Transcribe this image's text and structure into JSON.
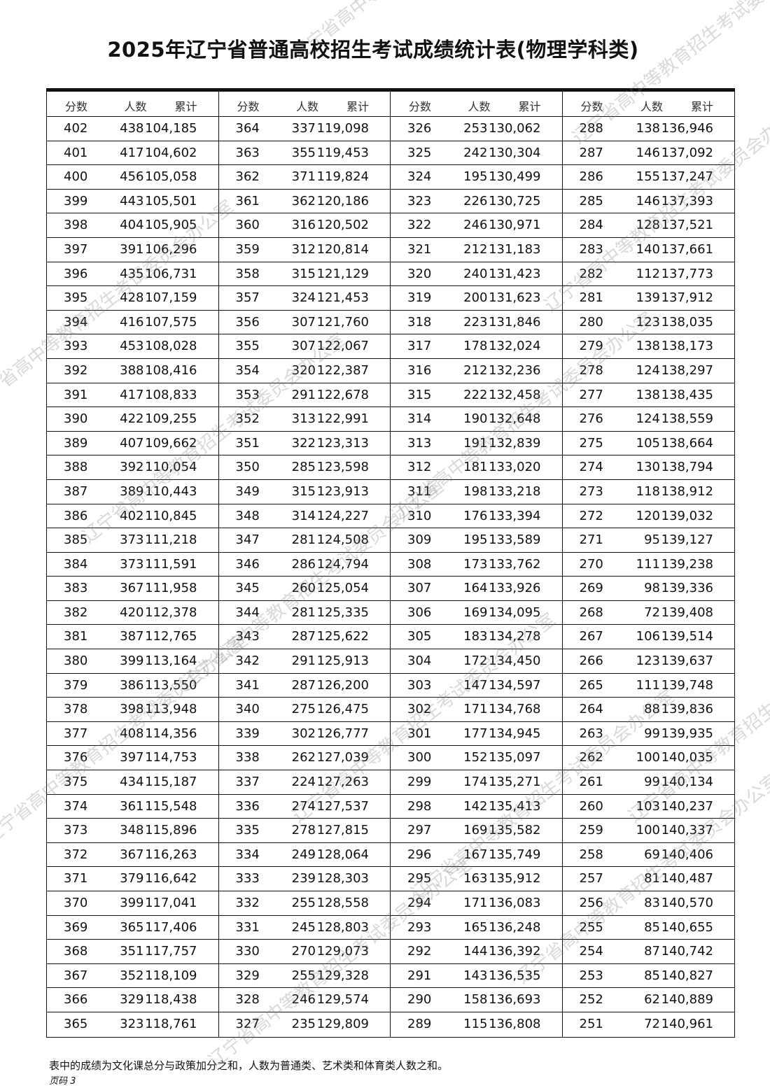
{
  "title": "2025年辽宁省普通高校招生考试成绩统计表(物理学科类)",
  "headers": {
    "score": "分数",
    "count": "人数",
    "cumulative": "累计"
  },
  "columns": [
    [
      [
        "402",
        "438",
        "104,185"
      ],
      [
        "401",
        "417",
        "104,602"
      ],
      [
        "400",
        "456",
        "105,058"
      ],
      [
        "399",
        "443",
        "105,501"
      ],
      [
        "398",
        "404",
        "105,905"
      ],
      [
        "397",
        "391",
        "106,296"
      ],
      [
        "396",
        "435",
        "106,731"
      ],
      [
        "395",
        "428",
        "107,159"
      ],
      [
        "394",
        "416",
        "107,575"
      ],
      [
        "393",
        "453",
        "108,028"
      ],
      [
        "392",
        "388",
        "108,416"
      ],
      [
        "391",
        "417",
        "108,833"
      ],
      [
        "390",
        "422",
        "109,255"
      ],
      [
        "389",
        "407",
        "109,662"
      ],
      [
        "388",
        "392",
        "110,054"
      ],
      [
        "387",
        "389",
        "110,443"
      ],
      [
        "386",
        "402",
        "110,845"
      ],
      [
        "385",
        "373",
        "111,218"
      ],
      [
        "384",
        "373",
        "111,591"
      ],
      [
        "383",
        "367",
        "111,958"
      ],
      [
        "382",
        "420",
        "112,378"
      ],
      [
        "381",
        "387",
        "112,765"
      ],
      [
        "380",
        "399",
        "113,164"
      ],
      [
        "379",
        "386",
        "113,550"
      ],
      [
        "378",
        "398",
        "113,948"
      ],
      [
        "377",
        "408",
        "114,356"
      ],
      [
        "376",
        "397",
        "114,753"
      ],
      [
        "375",
        "434",
        "115,187"
      ],
      [
        "374",
        "361",
        "115,548"
      ],
      [
        "373",
        "348",
        "115,896"
      ],
      [
        "372",
        "367",
        "116,263"
      ],
      [
        "371",
        "379",
        "116,642"
      ],
      [
        "370",
        "399",
        "117,041"
      ],
      [
        "369",
        "365",
        "117,406"
      ],
      [
        "368",
        "351",
        "117,757"
      ],
      [
        "367",
        "352",
        "118,109"
      ],
      [
        "366",
        "329",
        "118,438"
      ],
      [
        "365",
        "323",
        "118,761"
      ]
    ],
    [
      [
        "364",
        "337",
        "119,098"
      ],
      [
        "363",
        "355",
        "119,453"
      ],
      [
        "362",
        "371",
        "119,824"
      ],
      [
        "361",
        "362",
        "120,186"
      ],
      [
        "360",
        "316",
        "120,502"
      ],
      [
        "359",
        "312",
        "120,814"
      ],
      [
        "358",
        "315",
        "121,129"
      ],
      [
        "357",
        "324",
        "121,453"
      ],
      [
        "356",
        "307",
        "121,760"
      ],
      [
        "355",
        "307",
        "122,067"
      ],
      [
        "354",
        "320",
        "122,387"
      ],
      [
        "353",
        "291",
        "122,678"
      ],
      [
        "352",
        "313",
        "122,991"
      ],
      [
        "351",
        "322",
        "123,313"
      ],
      [
        "350",
        "285",
        "123,598"
      ],
      [
        "349",
        "315",
        "123,913"
      ],
      [
        "348",
        "314",
        "124,227"
      ],
      [
        "347",
        "281",
        "124,508"
      ],
      [
        "346",
        "286",
        "124,794"
      ],
      [
        "345",
        "260",
        "125,054"
      ],
      [
        "344",
        "281",
        "125,335"
      ],
      [
        "343",
        "287",
        "125,622"
      ],
      [
        "342",
        "291",
        "125,913"
      ],
      [
        "341",
        "287",
        "126,200"
      ],
      [
        "340",
        "275",
        "126,475"
      ],
      [
        "339",
        "302",
        "126,777"
      ],
      [
        "338",
        "262",
        "127,039"
      ],
      [
        "337",
        "224",
        "127,263"
      ],
      [
        "336",
        "274",
        "127,537"
      ],
      [
        "335",
        "278",
        "127,815"
      ],
      [
        "334",
        "249",
        "128,064"
      ],
      [
        "333",
        "239",
        "128,303"
      ],
      [
        "332",
        "255",
        "128,558"
      ],
      [
        "331",
        "245",
        "128,803"
      ],
      [
        "330",
        "270",
        "129,073"
      ],
      [
        "329",
        "255",
        "129,328"
      ],
      [
        "328",
        "246",
        "129,574"
      ],
      [
        "327",
        "235",
        "129,809"
      ]
    ],
    [
      [
        "326",
        "253",
        "130,062"
      ],
      [
        "325",
        "242",
        "130,304"
      ],
      [
        "324",
        "195",
        "130,499"
      ],
      [
        "323",
        "226",
        "130,725"
      ],
      [
        "322",
        "246",
        "130,971"
      ],
      [
        "321",
        "212",
        "131,183"
      ],
      [
        "320",
        "240",
        "131,423"
      ],
      [
        "319",
        "200",
        "131,623"
      ],
      [
        "318",
        "223",
        "131,846"
      ],
      [
        "317",
        "178",
        "132,024"
      ],
      [
        "316",
        "212",
        "132,236"
      ],
      [
        "315",
        "222",
        "132,458"
      ],
      [
        "314",
        "190",
        "132,648"
      ],
      [
        "313",
        "191",
        "132,839"
      ],
      [
        "312",
        "181",
        "133,020"
      ],
      [
        "311",
        "198",
        "133,218"
      ],
      [
        "310",
        "176",
        "133,394"
      ],
      [
        "309",
        "195",
        "133,589"
      ],
      [
        "308",
        "173",
        "133,762"
      ],
      [
        "307",
        "164",
        "133,926"
      ],
      [
        "306",
        "169",
        "134,095"
      ],
      [
        "305",
        "183",
        "134,278"
      ],
      [
        "304",
        "172",
        "134,450"
      ],
      [
        "303",
        "147",
        "134,597"
      ],
      [
        "302",
        "171",
        "134,768"
      ],
      [
        "301",
        "177",
        "134,945"
      ],
      [
        "300",
        "152",
        "135,097"
      ],
      [
        "299",
        "174",
        "135,271"
      ],
      [
        "298",
        "142",
        "135,413"
      ],
      [
        "297",
        "169",
        "135,582"
      ],
      [
        "296",
        "167",
        "135,749"
      ],
      [
        "295",
        "163",
        "135,912"
      ],
      [
        "294",
        "171",
        "136,083"
      ],
      [
        "293",
        "165",
        "136,248"
      ],
      [
        "292",
        "144",
        "136,392"
      ],
      [
        "291",
        "143",
        "136,535"
      ],
      [
        "290",
        "158",
        "136,693"
      ],
      [
        "289",
        "115",
        "136,808"
      ]
    ],
    [
      [
        "288",
        "138",
        "136,946"
      ],
      [
        "287",
        "146",
        "137,092"
      ],
      [
        "286",
        "155",
        "137,247"
      ],
      [
        "285",
        "146",
        "137,393"
      ],
      [
        "284",
        "128",
        "137,521"
      ],
      [
        "283",
        "140",
        "137,661"
      ],
      [
        "282",
        "112",
        "137,773"
      ],
      [
        "281",
        "139",
        "137,912"
      ],
      [
        "280",
        "123",
        "138,035"
      ],
      [
        "279",
        "138",
        "138,173"
      ],
      [
        "278",
        "124",
        "138,297"
      ],
      [
        "277",
        "138",
        "138,435"
      ],
      [
        "276",
        "124",
        "138,559"
      ],
      [
        "275",
        "105",
        "138,664"
      ],
      [
        "274",
        "130",
        "138,794"
      ],
      [
        "273",
        "118",
        "138,912"
      ],
      [
        "272",
        "120",
        "139,032"
      ],
      [
        "271",
        "95",
        "139,127"
      ],
      [
        "270",
        "111",
        "139,238"
      ],
      [
        "269",
        "98",
        "139,336"
      ],
      [
        "268",
        "72",
        "139,408"
      ],
      [
        "267",
        "106",
        "139,514"
      ],
      [
        "266",
        "123",
        "139,637"
      ],
      [
        "265",
        "111",
        "139,748"
      ],
      [
        "264",
        "88",
        "139,836"
      ],
      [
        "263",
        "99",
        "139,935"
      ],
      [
        "262",
        "100",
        "140,035"
      ],
      [
        "261",
        "99",
        "140,134"
      ],
      [
        "260",
        "103",
        "140,237"
      ],
      [
        "259",
        "100",
        "140,337"
      ],
      [
        "258",
        "69",
        "140,406"
      ],
      [
        "257",
        "81",
        "140,487"
      ],
      [
        "256",
        "83",
        "140,570"
      ],
      [
        "255",
        "85",
        "140,655"
      ],
      [
        "254",
        "87",
        "140,742"
      ],
      [
        "253",
        "85",
        "140,827"
      ],
      [
        "252",
        "62",
        "140,889"
      ],
      [
        "251",
        "72",
        "140,961"
      ]
    ]
  ],
  "footnote": "表中的成绩为文化课总分与政策加分之和，人数为普通类、艺术类和体育类人数之和。",
  "page_label": "页码 3",
  "watermark": "辽宁省高中等教育招生考试委员会办公室"
}
